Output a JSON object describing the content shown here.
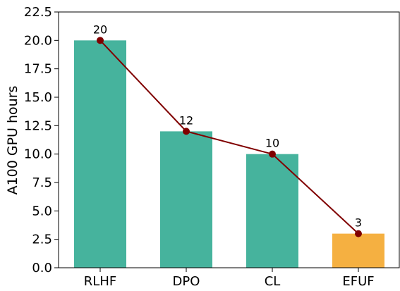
{
  "chart_data": {
    "type": "bar",
    "categories": [
      "RLHF",
      "DPO",
      "CL",
      "EFUF"
    ],
    "values": [
      20,
      12,
      10,
      3
    ],
    "data_labels": [
      "20",
      "12",
      "10",
      "3"
    ],
    "bar_colors": [
      "#46b39d",
      "#46b39d",
      "#46b39d",
      "#f5b041"
    ],
    "line": {
      "values": [
        20,
        12,
        10,
        3
      ],
      "color": "#800000"
    },
    "title": "",
    "xlabel": "",
    "ylabel": "A100 GPU hours",
    "ylim": [
      0,
      22.5
    ],
    "yticks": [
      0,
      2.5,
      5,
      7.5,
      10,
      12.5,
      15,
      17.5,
      20,
      22.5
    ],
    "ytick_labels": [
      "0.0",
      "2.5",
      "5.0",
      "7.5",
      "10.0",
      "12.5",
      "15.0",
      "17.5",
      "20.0",
      "22.5"
    ],
    "grid": false,
    "legend": "none"
  }
}
